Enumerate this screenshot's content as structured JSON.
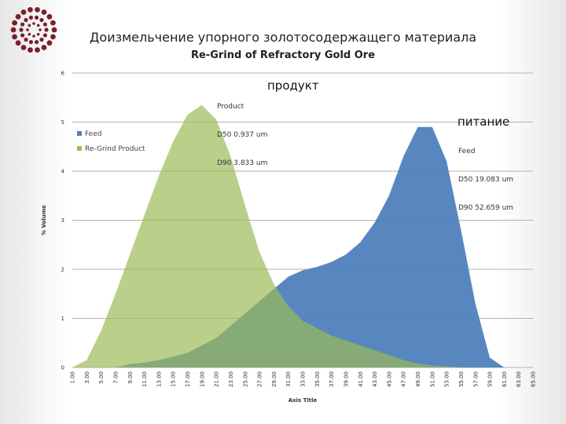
{
  "header": {
    "title_ru": "Доизмельчение упорного золотосодержащего материала",
    "title_en": "Re-Grind of Refractory Gold Ore",
    "logo_icon": "ornamental-circle-logo-icon",
    "logo_color": "#7a1f2b"
  },
  "annotations": {
    "product_label": "продукт",
    "feed_label": "питание",
    "product_note": [
      "Product",
      "D50 0.937 um",
      "D90 3.833 um"
    ],
    "feed_note": [
      "Feed",
      "D50 19.083 um",
      "D90 52.659 um"
    ]
  },
  "chart_data": {
    "type": "area",
    "title": "Re-Grind of Refractory Gold Ore",
    "xlabel": "Axis Title",
    "ylabel": "% Volume",
    "ylim": [
      0,
      6
    ],
    "yticks": [
      0,
      1,
      2,
      3,
      4,
      5,
      6
    ],
    "grid": true,
    "legend": "left",
    "x": [
      "1.00",
      "3.00",
      "5.00",
      "7.00",
      "9.00",
      "11.00",
      "13.00",
      "15.00",
      "17.00",
      "19.00",
      "21.00",
      "23.00",
      "25.00",
      "27.00",
      "29.00",
      "31.00",
      "33.00",
      "35.00",
      "37.00",
      "39.00",
      "41.00",
      "43.00",
      "45.00",
      "47.00",
      "49.00",
      "51.00",
      "53.00",
      "55.00",
      "57.00",
      "59.00",
      "61.00",
      "63.00",
      "65.00"
    ],
    "series": [
      {
        "name": "Feed",
        "color": "#4f81bd",
        "values": [
          0,
          0,
          0,
          0,
          0.07,
          0.1,
          0.15,
          0.22,
          0.3,
          0.45,
          0.6,
          0.85,
          1.1,
          1.35,
          1.6,
          1.85,
          1.98,
          2.05,
          2.15,
          2.3,
          2.55,
          2.95,
          3.5,
          4.3,
          4.9,
          4.9,
          4.2,
          2.8,
          1.3,
          0.2,
          0,
          0,
          0
        ]
      },
      {
        "name": "Re-Grind Product",
        "color": "#9bbb59",
        "values": [
          0,
          0.15,
          0.75,
          1.5,
          2.3,
          3.1,
          3.9,
          4.6,
          5.15,
          5.35,
          5.05,
          4.3,
          3.3,
          2.35,
          1.7,
          1.25,
          0.95,
          0.8,
          0.65,
          0.55,
          0.45,
          0.35,
          0.25,
          0.15,
          0.08,
          0.04,
          0.02,
          0,
          0,
          0,
          0,
          0,
          0
        ]
      }
    ]
  }
}
